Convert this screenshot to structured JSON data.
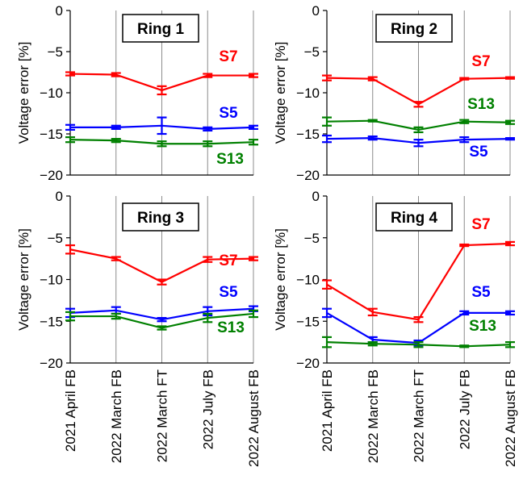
{
  "chart_data": [
    {
      "type": "line",
      "title": "Ring 1",
      "ylabel": "Voltage error [%]",
      "ylim": [
        -20,
        0
      ],
      "yticks": [
        0,
        -5,
        -10,
        -15,
        -20
      ],
      "categories": [
        "2021 April FB",
        "2022 March FB",
        "2022 March FT",
        "2022 July FB",
        "2022 August FB"
      ],
      "grid": "vertical",
      "series": [
        {
          "name": "S7",
          "color": "#ff0000",
          "values": [
            -7.7,
            -7.8,
            -9.7,
            -7.9,
            -7.9
          ],
          "errors": [
            0.2,
            0.2,
            0.5,
            0.2,
            0.2
          ]
        },
        {
          "name": "S5",
          "color": "#0000ff",
          "values": [
            -14.2,
            -14.2,
            -14.0,
            -14.4,
            -14.2
          ],
          "errors": [
            0.3,
            0.2,
            1.0,
            0.2,
            0.2
          ]
        },
        {
          "name": "S13",
          "color": "#008000",
          "values": [
            -15.7,
            -15.8,
            -16.2,
            -16.2,
            -16.0
          ],
          "errors": [
            0.3,
            0.2,
            0.3,
            0.3,
            0.3
          ]
        }
      ]
    },
    {
      "type": "line",
      "title": "Ring 2",
      "ylabel": "Voltage error [%]",
      "ylim": [
        -20,
        0
      ],
      "yticks": [
        0,
        -5,
        -10,
        -15,
        -20
      ],
      "categories": [
        "2021 April FB",
        "2022 March FB",
        "2022 March FT",
        "2022 July FB",
        "2022 August FB"
      ],
      "grid": "vertical",
      "series": [
        {
          "name": "S7",
          "color": "#ff0000",
          "values": [
            -8.2,
            -8.3,
            -11.4,
            -8.3,
            -8.2
          ],
          "errors": [
            0.3,
            0.2,
            0.3,
            0.1,
            0.1
          ]
        },
        {
          "name": "S13",
          "color": "#008000",
          "values": [
            -13.5,
            -13.4,
            -14.5,
            -13.5,
            -13.6
          ],
          "errors": [
            0.5,
            0.1,
            0.3,
            0.2,
            0.2
          ]
        },
        {
          "name": "S5",
          "color": "#0000ff",
          "values": [
            -15.6,
            -15.5,
            -16.1,
            -15.7,
            -15.6
          ],
          "errors": [
            0.4,
            0.2,
            0.4,
            0.3,
            0.1
          ]
        }
      ]
    },
    {
      "type": "line",
      "title": "Ring 3",
      "ylabel": "Voltage error [%]",
      "ylim": [
        -20,
        0
      ],
      "yticks": [
        0,
        -5,
        -10,
        -15,
        -20
      ],
      "categories": [
        "2021 April FB",
        "2022 March FB",
        "2022 March FT",
        "2022 July FB",
        "2022 August FB"
      ],
      "grid": "vertical",
      "series": [
        {
          "name": "S7",
          "color": "#ff0000",
          "values": [
            -6.4,
            -7.5,
            -10.3,
            -7.6,
            -7.5
          ],
          "errors": [
            0.5,
            0.2,
            0.3,
            0.3,
            0.2
          ]
        },
        {
          "name": "S5",
          "color": "#0000ff",
          "values": [
            -14.0,
            -13.7,
            -14.8,
            -13.8,
            -13.5
          ],
          "errors": [
            0.5,
            0.4,
            0.2,
            0.5,
            0.3
          ]
        },
        {
          "name": "S13",
          "color": "#008000",
          "values": [
            -14.4,
            -14.4,
            -15.8,
            -14.6,
            -14.1
          ],
          "errors": [
            0.5,
            0.3,
            0.2,
            0.5,
            0.4
          ]
        }
      ]
    },
    {
      "type": "line",
      "title": "Ring 4",
      "ylabel": "Voltage error [%]",
      "ylim": [
        -20,
        0
      ],
      "yticks": [
        0,
        -5,
        -10,
        -15,
        -20
      ],
      "categories": [
        "2021 April FB",
        "2022 March FB",
        "2022 March FT",
        "2022 July FB",
        "2022 August FB"
      ],
      "grid": "vertical",
      "series": [
        {
          "name": "S7",
          "color": "#ff0000",
          "values": [
            -10.6,
            -13.9,
            -14.8,
            -5.9,
            -5.7
          ],
          "errors": [
            0.5,
            0.4,
            0.3,
            0.1,
            0.2
          ]
        },
        {
          "name": "S5",
          "color": "#0000ff",
          "values": [
            -14.0,
            -17.2,
            -17.6,
            -14.0,
            -14.0
          ],
          "errors": [
            0.5,
            0.3,
            0.3,
            0.2,
            0.2
          ]
        },
        {
          "name": "S13",
          "color": "#008000",
          "values": [
            -17.5,
            -17.7,
            -17.8,
            -18.0,
            -17.8
          ],
          "errors": [
            0.6,
            0.2,
            0.3,
            0.1,
            0.3
          ]
        }
      ]
    }
  ]
}
